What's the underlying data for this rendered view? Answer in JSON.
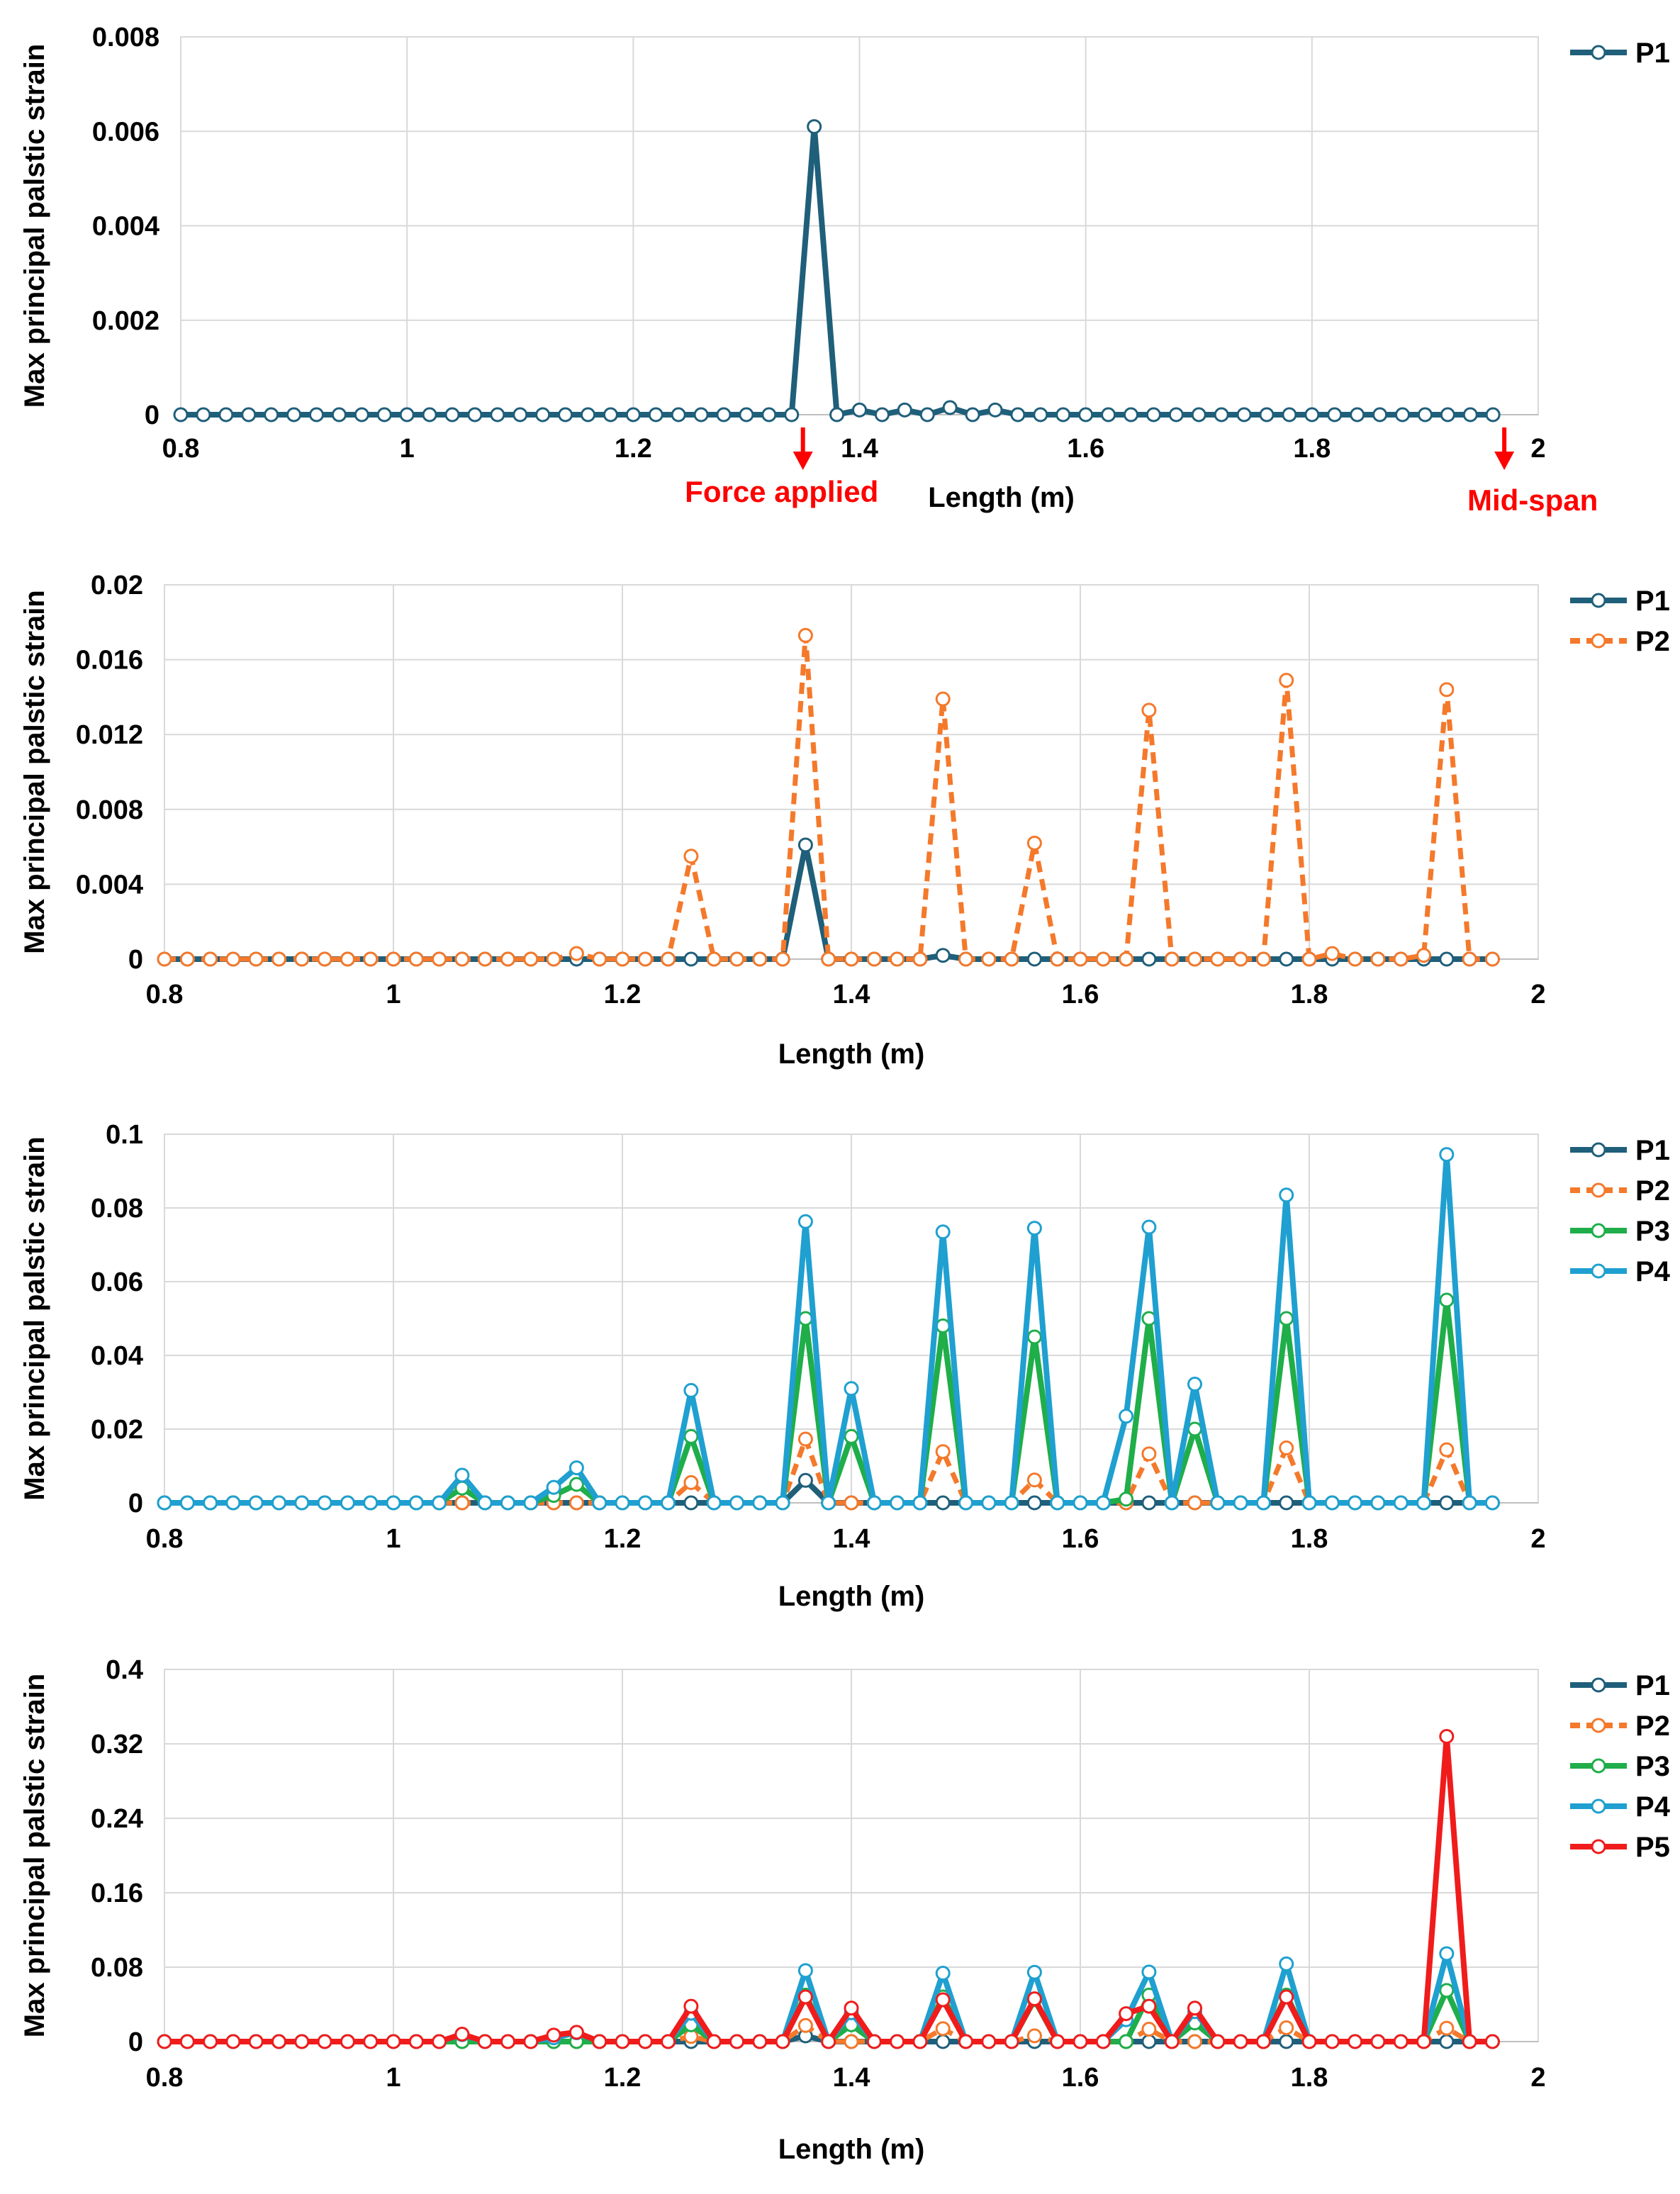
{
  "chart_data": [
    {
      "type": "line",
      "title": "",
      "xlabel": "Length (m)",
      "ylabel": "Max principal palstic strain",
      "xlim": [
        0.8,
        2
      ],
      "ylim": [
        0,
        0.008
      ],
      "xticks": [
        "0.8",
        "1",
        "1.2",
        "1.4",
        "1.6",
        "1.8",
        "2"
      ],
      "yticks": [
        "0",
        "0.002",
        "0.004",
        "0.006",
        "0.008"
      ],
      "grid": true,
      "legend": "top-right",
      "annotations": [
        {
          "text": "Force applied",
          "x": 1.35
        },
        {
          "text": "Mid-span",
          "x": 1.97
        }
      ],
      "series": [
        {
          "name": "P1",
          "color": "#1f5f7a",
          "dashed": false,
          "points": [
            [
              1.36,
              0.0061
            ],
            [
              1.48,
              0.00015
            ],
            [
              1.52,
              0.0001
            ],
            [
              1.44,
              0.0001
            ],
            [
              1.4,
              0.0001
            ]
          ]
        }
      ]
    },
    {
      "type": "line",
      "title": "",
      "xlabel": "Length (m)",
      "ylabel": "Max principal palstic strain",
      "xlim": [
        0.8,
        2
      ],
      "ylim": [
        0,
        0.02
      ],
      "xticks": [
        "0.8",
        "1",
        "1.2",
        "1.4",
        "1.6",
        "1.8",
        "2"
      ],
      "yticks": [
        "0",
        "0.004",
        "0.008",
        "0.012",
        "0.016",
        "0.02"
      ],
      "grid": true,
      "legend": "top-right",
      "annotations": [],
      "series": [
        {
          "name": "P1",
          "color": "#1f5f7a",
          "dashed": false,
          "points": [
            [
              1.36,
              0.0061
            ],
            [
              1.48,
              0.0002
            ]
          ]
        },
        {
          "name": "P2",
          "color": "#f4792b",
          "dashed": true,
          "points": [
            [
              1.16,
              0.0003
            ],
            [
              1.26,
              0.0055
            ],
            [
              1.36,
              0.0173
            ],
            [
              1.48,
              0.0139
            ],
            [
              1.56,
              0.0062
            ],
            [
              1.66,
              0.0133
            ],
            [
              1.78,
              0.0149
            ],
            [
              1.82,
              0.0003
            ],
            [
              1.9,
              0.0002
            ],
            [
              1.92,
              0.0144
            ]
          ]
        }
      ]
    },
    {
      "type": "line",
      "title": "",
      "xlabel": "Length (m)",
      "ylabel": "Max principal palstic strain",
      "xlim": [
        0.8,
        2
      ],
      "ylim": [
        0,
        0.1
      ],
      "xticks": [
        "0.8",
        "1",
        "1.2",
        "1.4",
        "1.6",
        "1.8",
        "2"
      ],
      "yticks": [
        "0",
        "0.02",
        "0.04",
        "0.06",
        "0.08",
        "0.1"
      ],
      "grid": true,
      "legend": "top-right",
      "annotations": [],
      "series": [
        {
          "name": "P1",
          "color": "#1f5f7a",
          "dashed": false,
          "points": [
            [
              1.36,
              0.0061
            ]
          ]
        },
        {
          "name": "P2",
          "color": "#f4792b",
          "dashed": true,
          "points": [
            [
              1.26,
              0.0055
            ],
            [
              1.36,
              0.0173
            ],
            [
              1.48,
              0.0139
            ],
            [
              1.56,
              0.0062
            ],
            [
              1.66,
              0.0133
            ],
            [
              1.78,
              0.0149
            ],
            [
              1.92,
              0.0144
            ]
          ]
        },
        {
          "name": "P3",
          "color": "#1fae4a",
          "dashed": false,
          "points": [
            [
              0.95,
              0.002
            ],
            [
              1.06,
              0.004
            ],
            [
              1.14,
              0.002
            ],
            [
              1.16,
              0.005
            ],
            [
              1.26,
              0.018
            ],
            [
              1.36,
              0.05
            ],
            [
              1.4,
              0.018
            ],
            [
              1.48,
              0.048
            ],
            [
              1.56,
              0.045
            ],
            [
              1.64,
              0.001
            ],
            [
              1.66,
              0.05
            ],
            [
              1.7,
              0.02
            ],
            [
              1.78,
              0.05
            ],
            [
              1.92,
              0.055
            ]
          ]
        },
        {
          "name": "P4",
          "color": "#1fa0d0",
          "dashed": false,
          "points": [
            [
              0.95,
              0.0052
            ],
            [
              1.06,
              0.0075
            ],
            [
              1.14,
              0.0042
            ],
            [
              1.16,
              0.0095
            ],
            [
              1.26,
              0.0305
            ],
            [
              1.36,
              0.0763
            ],
            [
              1.4,
              0.031
            ],
            [
              1.48,
              0.0735
            ],
            [
              1.56,
              0.0745
            ],
            [
              1.64,
              0.0235
            ],
            [
              1.66,
              0.0748
            ],
            [
              1.7,
              0.0322
            ],
            [
              1.78,
              0.0835
            ],
            [
              1.92,
              0.0945
            ]
          ]
        }
      ]
    },
    {
      "type": "line",
      "title": "",
      "xlabel": "Length (m)",
      "ylabel": "Max principal palstic strain",
      "xlim": [
        0.8,
        2
      ],
      "ylim": [
        0,
        0.4
      ],
      "xticks": [
        "0.8",
        "1",
        "1.2",
        "1.4",
        "1.6",
        "1.8",
        "2"
      ],
      "yticks": [
        "0",
        "0.08",
        "0.16",
        "0.24",
        "0.32",
        "0.4"
      ],
      "grid": true,
      "legend": "top-right",
      "annotations": [],
      "series": [
        {
          "name": "P1",
          "color": "#1f5f7a",
          "dashed": false,
          "points": [
            [
              1.36,
              0.0061
            ]
          ]
        },
        {
          "name": "P2",
          "color": "#f4792b",
          "dashed": true,
          "points": [
            [
              1.26,
              0.0055
            ],
            [
              1.36,
              0.0173
            ],
            [
              1.48,
              0.0139
            ],
            [
              1.56,
              0.0062
            ],
            [
              1.66,
              0.0133
            ],
            [
              1.78,
              0.0149
            ],
            [
              1.92,
              0.0144
            ]
          ]
        },
        {
          "name": "P3",
          "color": "#1fae4a",
          "dashed": false,
          "points": [
            [
              1.26,
              0.018
            ],
            [
              1.36,
              0.05
            ],
            [
              1.4,
              0.018
            ],
            [
              1.48,
              0.048
            ],
            [
              1.56,
              0.045
            ],
            [
              1.66,
              0.05
            ],
            [
              1.7,
              0.02
            ],
            [
              1.78,
              0.05
            ],
            [
              1.92,
              0.055
            ]
          ]
        },
        {
          "name": "P4",
          "color": "#1fa0d0",
          "dashed": false,
          "points": [
            [
              0.95,
              0.005
            ],
            [
              1.06,
              0.0075
            ],
            [
              1.14,
              0.004
            ],
            [
              1.16,
              0.0095
            ],
            [
              1.26,
              0.0305
            ],
            [
              1.36,
              0.0763
            ],
            [
              1.4,
              0.031
            ],
            [
              1.48,
              0.0735
            ],
            [
              1.56,
              0.0745
            ],
            [
              1.64,
              0.0235
            ],
            [
              1.66,
              0.0748
            ],
            [
              1.7,
              0.0322
            ],
            [
              1.78,
              0.0835
            ],
            [
              1.92,
              0.0945
            ]
          ]
        },
        {
          "name": "P5",
          "color": "#f01c1c",
          "dashed": false,
          "points": [
            [
              0.95,
              0.006
            ],
            [
              1.06,
              0.008
            ],
            [
              1.14,
              0.007
            ],
            [
              1.16,
              0.01
            ],
            [
              1.26,
              0.038
            ],
            [
              1.36,
              0.048
            ],
            [
              1.4,
              0.036
            ],
            [
              1.48,
              0.045
            ],
            [
              1.56,
              0.046
            ],
            [
              1.64,
              0.03
            ],
            [
              1.66,
              0.038
            ],
            [
              1.7,
              0.036
            ],
            [
              1.78,
              0.048
            ],
            [
              1.92,
              0.328
            ]
          ]
        }
      ]
    }
  ]
}
